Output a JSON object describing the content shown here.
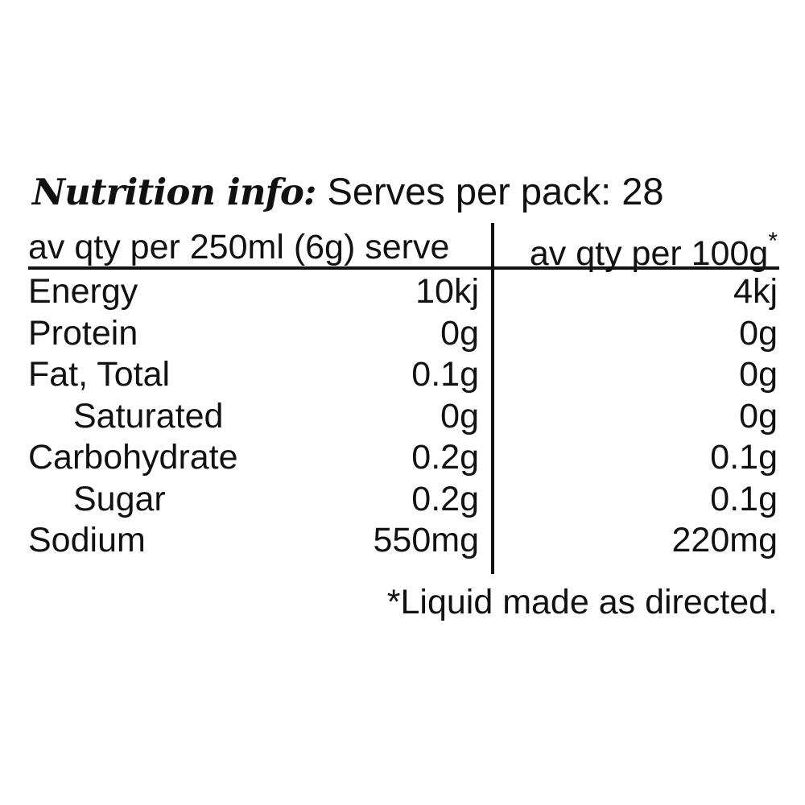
{
  "panel": {
    "title_script": "Nutrition info:",
    "serves_label": "Serves per pack: 28",
    "columns": {
      "left_header": "av qty per 250ml (6g) serve",
      "right_header": "av qty per 100g",
      "right_header_footnote_mark": "*"
    },
    "rows": [
      {
        "label": "Energy",
        "per_serve": "10kj",
        "per_100g": "4kj",
        "indent": false
      },
      {
        "label": "Protein",
        "per_serve": "0g",
        "per_100g": "0g",
        "indent": false
      },
      {
        "label": "Fat, Total",
        "per_serve": "0.1g",
        "per_100g": "0g",
        "indent": false
      },
      {
        "label": "Saturated",
        "per_serve": "0g",
        "per_100g": "0g",
        "indent": true
      },
      {
        "label": "Carbohydrate",
        "per_serve": "0.2g",
        "per_100g": "0.1g",
        "indent": false
      },
      {
        "label": "Sugar",
        "per_serve": "0.2g",
        "per_100g": "0.1g",
        "indent": true
      },
      {
        "label": "Sodium",
        "per_serve": "550mg",
        "per_100g": "220mg",
        "indent": false
      }
    ],
    "footnote": "*Liquid made as directed.",
    "colors": {
      "text": "#111111",
      "background": "#ffffff",
      "rule": "#111111"
    }
  }
}
